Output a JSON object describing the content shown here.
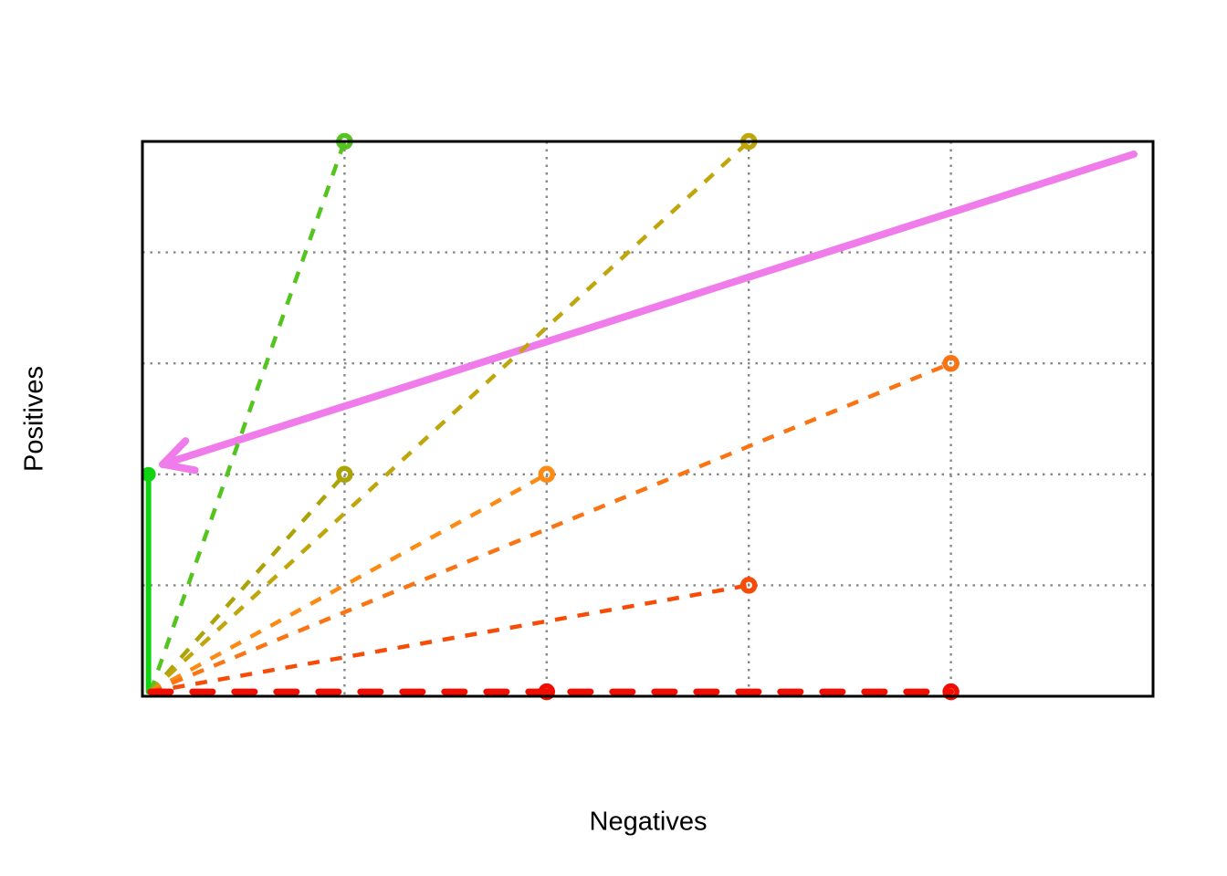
{
  "chart_data": {
    "type": "line",
    "title": "",
    "xlabel": "Negatives",
    "ylabel": "Positives",
    "xlim": [
      0,
      1
    ],
    "ylim": [
      0,
      1
    ],
    "background": "#ffffff",
    "border_color": "#000000",
    "grid": {
      "x": [
        0.2,
        0.4,
        0.6,
        0.8
      ],
      "y": [
        0.2,
        0.4,
        0.6,
        0.8
      ],
      "color": "#878787",
      "style": "dotted"
    },
    "legend": "none",
    "tick_labels": "none",
    "series": [
      {
        "name": "solid-green-vertical",
        "from": [
          0.006,
          0.008
        ],
        "to": [
          0.006,
          0.4
        ],
        "color": "#12D312",
        "style": "solid",
        "width": 6,
        "markers": [
          {
            "at": [
              0.006,
              0.4
            ],
            "shape": "filled-circle",
            "radius": 8
          }
        ]
      },
      {
        "name": "green-dashed",
        "from": [
          0.008,
          0.008
        ],
        "to": [
          0.2,
          1.0
        ],
        "color": "#54C41F",
        "style": "dashed",
        "width": 4.5,
        "markers": [
          {
            "at": [
              0.2,
              1.0
            ],
            "shape": "open-circle"
          }
        ]
      },
      {
        "name": "olive-dashed-steep",
        "from": [
          0.008,
          0.008
        ],
        "to": [
          0.2,
          0.4
        ],
        "color": "#ABA308",
        "style": "dashed",
        "width": 4.5,
        "markers": [
          {
            "at": [
              0.2,
              0.4
            ],
            "shape": "open-circle"
          }
        ]
      },
      {
        "name": "olive-dashed-tall",
        "from": [
          0.008,
          0.008
        ],
        "to": [
          0.6,
          1.0
        ],
        "color": "#BFA60D",
        "style": "dashed",
        "width": 4.5,
        "markers": [
          {
            "at": [
              0.6,
              1.0
            ],
            "shape": "open-circle"
          }
        ]
      },
      {
        "name": "orange-dashed-mid",
        "from": [
          0.008,
          0.008
        ],
        "to": [
          0.4,
          0.4
        ],
        "color": "#FB8B14",
        "style": "dashed",
        "width": 4.5,
        "markers": [
          {
            "at": [
              0.4,
              0.4
            ],
            "shape": "open-circle"
          }
        ]
      },
      {
        "name": "orange-dashed-far",
        "from": [
          0.008,
          0.008
        ],
        "to": [
          0.8,
          0.6
        ],
        "color": "#FA7414",
        "style": "dashed",
        "width": 4.5,
        "markers": [
          {
            "at": [
              0.8,
              0.6
            ],
            "shape": "open-circle"
          }
        ]
      },
      {
        "name": "orangered-dashed",
        "from": [
          0.008,
          0.008
        ],
        "to": [
          0.6,
          0.2
        ],
        "color": "#F74B08",
        "style": "dashed",
        "width": 4.5,
        "markers": [
          {
            "at": [
              0.6,
              0.2
            ],
            "shape": "open-circle"
          }
        ]
      },
      {
        "name": "red-dashed-bottom",
        "from": [
          0.008,
          0.008
        ],
        "to": [
          0.8,
          0.008
        ],
        "color": "#F10D00",
        "style": "dashed-long",
        "width": 7,
        "markers": [
          {
            "at": [
              0.4,
              0.008
            ],
            "shape": "open-circle"
          },
          {
            "at": [
              0.8,
              0.008
            ],
            "shape": "open-circle"
          }
        ]
      }
    ],
    "arrow": {
      "from": [
        0.981,
        0.977
      ],
      "to": [
        0.02,
        0.418
      ],
      "color": "#EF7CEA",
      "width": 8,
      "head_length": 36,
      "head_angle_deg": 28
    }
  }
}
